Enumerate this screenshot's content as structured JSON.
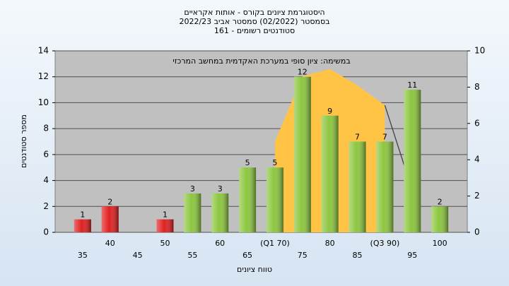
{
  "chart_data": {
    "type": "bar",
    "title": [
      "היסטוגרמת ציונים בקורס - אותות אקראיים",
      "בסמסטר  (02/2022)  סמסטר אביב 2022/23",
      "סטודנטים רשומים - 161"
    ],
    "annotation": "במשימה: ציון סופי במערכת האקדמית במחשב המרכזי",
    "ylabel": "מספר סטודנטים",
    "xlabel": "טווח ציונים",
    "categories": [
      "35",
      "40",
      "45",
      "50",
      "55",
      "60",
      "65",
      "(Q1 70)",
      "75",
      "80",
      "85",
      "(Q3 90)",
      "95",
      "100"
    ],
    "values": [
      1,
      2,
      null,
      1,
      3,
      3,
      5,
      5,
      12,
      9,
      7,
      7,
      11,
      2
    ],
    "colors": [
      "#e02020",
      "#e02020",
      "#e02020",
      "#e02020",
      "#8cc63f",
      "#8cc63f",
      "#8cc63f",
      "#8cc63f",
      "#8cc63f",
      "#8cc63f",
      "#8cc63f",
      "#8cc63f",
      "#8cc63f",
      "#8cc63f"
    ],
    "series": [
      {
        "axis": "y2",
        "kind": "area",
        "color": "#ffc445",
        "values": [
          null,
          null,
          null,
          null,
          null,
          null,
          null,
          5,
          8.6,
          9,
          8.1,
          7,
          null,
          null
        ]
      },
      {
        "axis": "y2",
        "kind": "line",
        "color": "#404040",
        "values": [
          null,
          null,
          null,
          null,
          null,
          null,
          null,
          null,
          null,
          null,
          null,
          7,
          2.3,
          null
        ]
      }
    ],
    "ylim": [
      0,
      14
    ],
    "yticks": [
      0,
      2,
      4,
      6,
      8,
      10,
      12,
      14
    ],
    "y2lim": [
      0,
      10
    ],
    "y2ticks": [
      0,
      2,
      4,
      6,
      8,
      10
    ],
    "grid": true
  }
}
